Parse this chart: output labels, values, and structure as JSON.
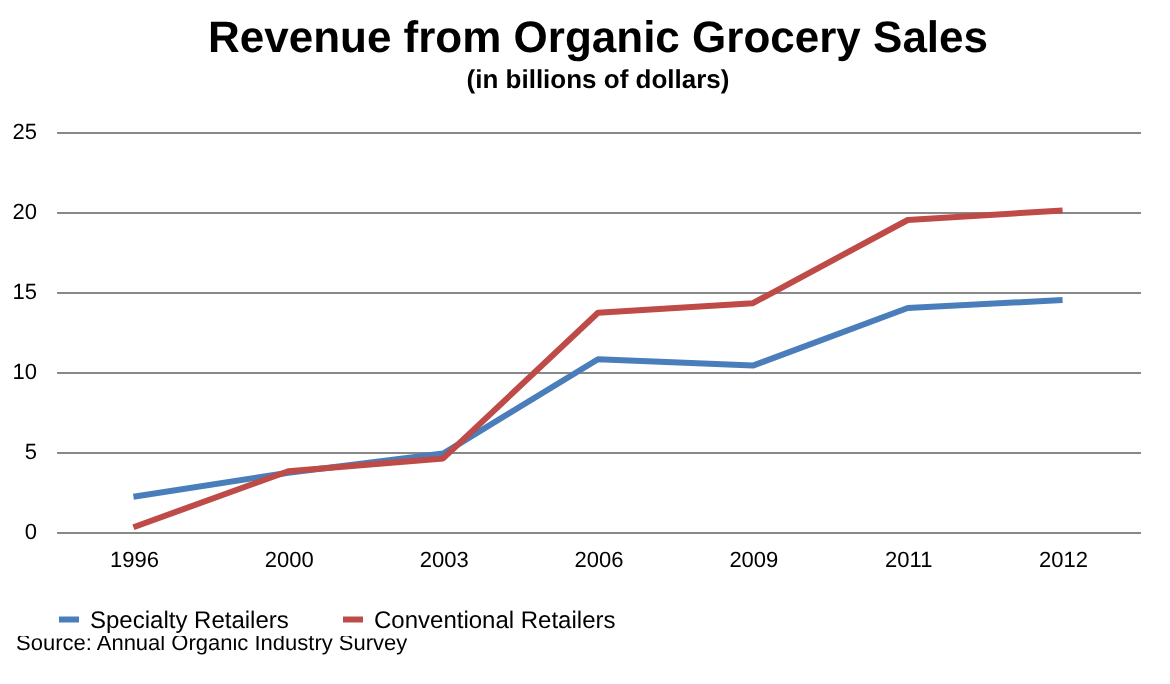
{
  "chart_data": {
    "type": "line",
    "title": "Revenue from Organic Grocery Sales",
    "subtitle": "(in billions of dollars)",
    "categories": [
      "1996",
      "2000",
      "2003",
      "2006",
      "2009",
      "2011",
      "2012"
    ],
    "series": [
      {
        "name": "Specialty Retailers",
        "color": "#4a7ebb",
        "values": [
          2.2,
          3.7,
          4.9,
          10.8,
          10.4,
          14.0,
          14.5
        ]
      },
      {
        "name": "Conventional Retailers",
        "color": "#be4b48",
        "values": [
          0.3,
          3.8,
          4.6,
          13.7,
          14.3,
          19.5,
          20.1
        ]
      }
    ],
    "ylim": [
      0,
      25
    ],
    "yticks": [
      0,
      5,
      10,
      15,
      20,
      25
    ],
    "grid": "y",
    "legend": "bottom",
    "marker": "none",
    "line_style": "solid",
    "annotations": [
      "Source: Annual Organic Industry Survey"
    ]
  }
}
